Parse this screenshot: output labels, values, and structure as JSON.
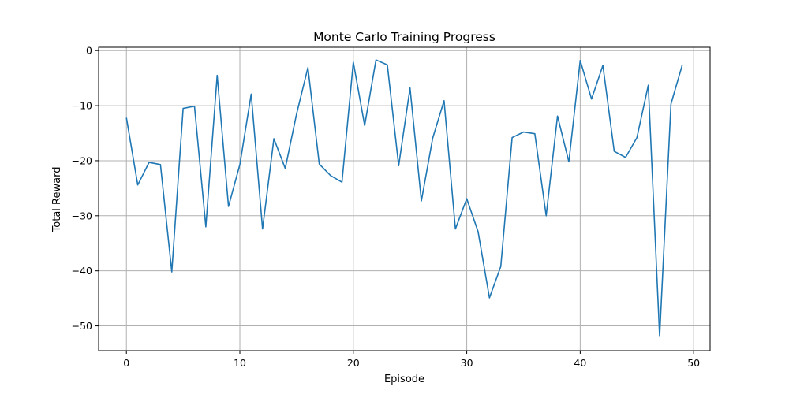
{
  "chart_data": {
    "type": "line",
    "title": "Monte Carlo Training Progress",
    "xlabel": "Episode",
    "ylabel": "Total Reward",
    "xlim": [
      -2.45,
      51.45
    ],
    "ylim": [
      -54.5,
      0.6
    ],
    "xticks": [
      0,
      10,
      20,
      30,
      40,
      50
    ],
    "yticks": [
      0,
      -10,
      -20,
      -30,
      -40,
      -50
    ],
    "grid": true,
    "series": [
      {
        "color": "#1f77b4",
        "x": [
          0,
          1,
          2,
          3,
          4,
          5,
          6,
          7,
          8,
          9,
          10,
          11,
          12,
          13,
          14,
          15,
          16,
          17,
          18,
          19,
          20,
          21,
          22,
          23,
          24,
          25,
          26,
          27,
          28,
          29,
          30,
          31,
          32,
          33,
          34,
          35,
          36,
          37,
          38,
          39,
          40,
          41,
          42,
          43,
          44,
          45,
          46,
          47,
          48,
          49
        ],
        "values": [
          -12.2,
          -24.4,
          -20.3,
          -20.7,
          -40.2,
          -10.5,
          -10.1,
          -32.0,
          -4.5,
          -28.3,
          -20.7,
          -7.9,
          -32.4,
          -16.0,
          -21.4,
          -11.5,
          -3.1,
          -20.6,
          -22.7,
          -23.9,
          -2.1,
          -13.6,
          -1.7,
          -2.6,
          -20.9,
          -6.8,
          -27.3,
          -15.9,
          -9.1,
          -32.4,
          -26.9,
          -32.9,
          -44.9,
          -39.2,
          -15.8,
          -14.8,
          -15.1,
          -30.0,
          -11.9,
          -20.2,
          -1.8,
          -8.8,
          -2.7,
          -18.3,
          -19.4,
          -15.8,
          -6.3,
          -51.9,
          -9.7,
          -2.6
        ]
      }
    ]
  }
}
